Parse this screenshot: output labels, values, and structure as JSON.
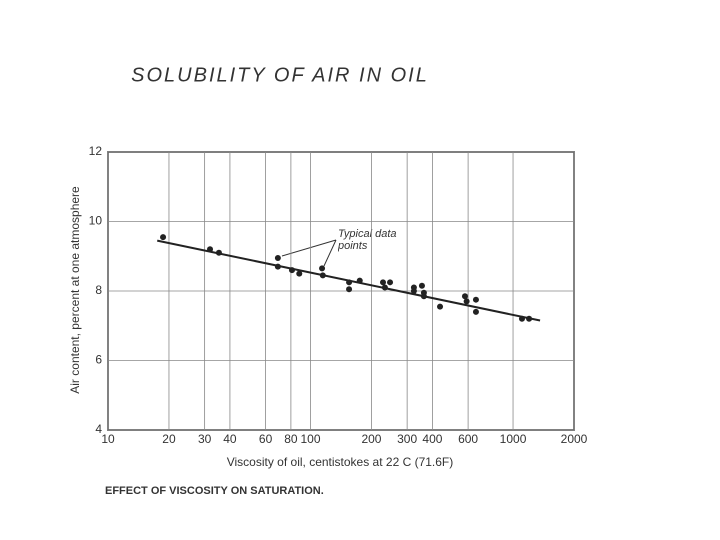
{
  "chart_data": {
    "type": "scatter",
    "title": "SOLUBILITY OF AIR IN OIL",
    "caption": "EFFECT OF VISCOSITY ON SATURATION.",
    "x_label": "Viscosity of oil, centistokes at 22 C (71.6F)",
    "y_label": "Air content, percent at one atmosphere",
    "annotation": "Typical data points",
    "x": [
      18.7,
      31.9,
      35.3,
      69,
      69,
      81,
      88,
      114,
      115,
      155,
      155,
      175,
      228,
      233,
      247,
      324,
      324,
      355,
      363,
      363,
      436,
      579,
      590,
      656,
      656,
      1107,
      1200
    ],
    "values": [
      9.55,
      9.2,
      9.1,
      8.95,
      8.7,
      8.6,
      8.5,
      8.65,
      8.45,
      8.25,
      8.05,
      8.3,
      8.25,
      8.1,
      8.25,
      8.1,
      8.0,
      8.15,
      7.95,
      7.85,
      7.55,
      7.85,
      7.7,
      7.75,
      7.4,
      7.2,
      7.2
    ],
    "color": "#222222",
    "fit_line": {
      "x": [
        17.5,
        1360
      ],
      "y": [
        9.45,
        7.15
      ],
      "color": "#222222"
    },
    "xscale": "log",
    "xlim": [
      10,
      2000
    ],
    "xticks": [
      10,
      20,
      30,
      40,
      60,
      80,
      100,
      200,
      300,
      400,
      600,
      1000,
      2000
    ],
    "ylim": [
      4,
      12
    ],
    "yticks": [
      4,
      6,
      8,
      10,
      12
    ],
    "grid": true
  }
}
